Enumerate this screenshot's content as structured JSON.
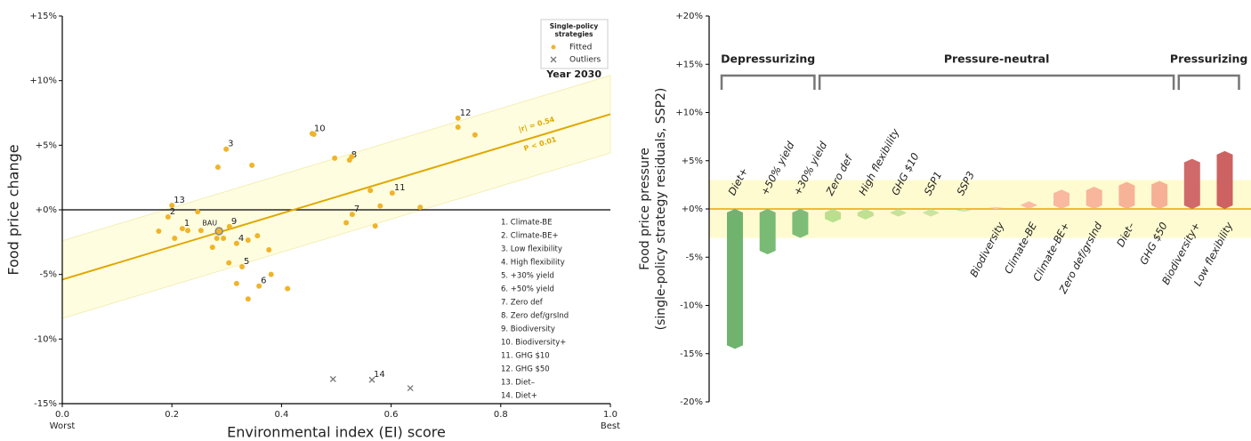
{
  "chart_data": [
    {
      "type": "scatter",
      "xlabel": "Environmental index (EI) score",
      "ylabel": "Food price change",
      "xlim": [
        0,
        1
      ],
      "ylim": [
        -15,
        15
      ],
      "xticks": [
        {
          "value": 0,
          "label": "0.0"
        },
        0.2,
        0.4,
        0.6,
        0.8,
        {
          "value": 1,
          "label": "1.0"
        }
      ],
      "xtick_sublabels": [
        "Worst",
        "Best"
      ],
      "yticks": [
        {
          "value": 15,
          "label": "+15%"
        },
        {
          "value": 10,
          "label": "+10%"
        },
        {
          "value": 5,
          "label": "+5%"
        },
        {
          "value": 0,
          "label": "+0%"
        },
        {
          "value": -5,
          "label": "-5%"
        },
        {
          "value": -10,
          "label": "-10%"
        },
        {
          "value": -15,
          "label": "-15%"
        }
      ],
      "legend_title": [
        "Single-policy",
        "strategies"
      ],
      "legend": "upper right",
      "series": [
        {
          "name": "Fitted",
          "marker": "o",
          "color": "#f0b429",
          "x": [
            0.2,
            0.193,
            0.176,
            0.219,
            0.229,
            0.205,
            0.247,
            0.253,
            0.305,
            0.282,
            0.294,
            0.274,
            0.318,
            0.339,
            0.356,
            0.377,
            0.304,
            0.328,
            0.381,
            0.359,
            0.318,
            0.339,
            0.411,
            0.299,
            0.284,
            0.346,
            0.456,
            0.459,
            0.497,
            0.524,
            0.528,
            0.722,
            0.722,
            0.753,
            0.562,
            0.602,
            0.58,
            0.653,
            0.529,
            0.518,
            0.571
          ],
          "values": [
            0.34,
            -0.55,
            -1.65,
            -1.45,
            -1.6,
            -2.2,
            -0.15,
            -1.6,
            -1.3,
            -2.2,
            -2.2,
            -2.9,
            -2.6,
            -2.35,
            -2.0,
            -3.1,
            -4.1,
            -4.4,
            -5.0,
            -5.9,
            -5.7,
            -6.9,
            -6.1,
            4.7,
            3.3,
            3.45,
            5.9,
            5.85,
            4.0,
            3.85,
            4.1,
            7.1,
            6.4,
            5.8,
            1.5,
            1.3,
            0.3,
            0.2,
            -0.35,
            -1.0,
            -1.25
          ],
          "labels": [
            "13",
            "2",
            null,
            "1",
            null,
            null,
            null,
            null,
            "9",
            null,
            null,
            null,
            "4",
            null,
            null,
            null,
            null,
            "5",
            null,
            "6",
            null,
            null,
            null,
            "3",
            null,
            null,
            "10",
            null,
            null,
            "8",
            null,
            "12",
            null,
            null,
            null,
            "11",
            null,
            null,
            "7",
            null,
            null
          ]
        },
        {
          "name": "Outliers",
          "marker": "x",
          "color": "#777777",
          "x": [
            0.494,
            0.565,
            0.635
          ],
          "values": [
            -13.1,
            -13.15,
            -13.8
          ],
          "labels": [
            null,
            "14",
            null
          ]
        }
      ],
      "highlight": {
        "label": "BAU",
        "x": 0.286,
        "y": -1.65,
        "color": "#888888"
      },
      "fit": {
        "intercept": -5.4,
        "slope": 12.8,
        "band": 3.0,
        "color": "#e0a800",
        "band_color": "#fffde0",
        "annotations": [
          "|r| = 0.54",
          "P < 0.01"
        ]
      },
      "annotation": "Year 2030",
      "key": [
        "1. Climate-BE",
        "2. Climate-BE+",
        "3. Low flexibility",
        "4. High flexibility",
        "5. +30% yield",
        "6. +50% yield",
        "7. Zero def",
        "8. Zero def/grsInd",
        "9. Biodiversity",
        "10. Biodiversity+",
        "11. GHG $10",
        "12. GHG $50",
        "13. Diet–",
        "14. Diet+"
      ]
    },
    {
      "type": "bar",
      "ylabel": [
        "Food price pressure",
        "(single-policy strategy residuals, SSP2)"
      ],
      "ylim": [
        -20,
        20
      ],
      "yticks": [
        {
          "value": 20,
          "label": "+20%"
        },
        {
          "value": 15,
          "label": "+15%"
        },
        {
          "value": 10,
          "label": "+10%"
        },
        {
          "value": 5,
          "label": "+5%"
        },
        {
          "value": 0,
          "label": "+0%"
        },
        {
          "value": -5,
          "label": "-5%"
        },
        {
          "value": -10,
          "label": "-10%"
        },
        {
          "value": -15,
          "label": "-15%"
        },
        {
          "value": -20,
          "label": "-20%"
        }
      ],
      "categories": [
        "Diet+",
        "+50% yield",
        "+30% yield",
        "Zero def",
        "High flexibility",
        "GHG $10",
        "SSP1",
        "SSP3",
        "Biodiversity",
        "Climate-BE",
        "Climate-BE+",
        "Zero def/grsInd",
        "Diet–",
        "GHG $50",
        "Biodiversity+",
        "Low flexibility"
      ],
      "values": [
        -14.5,
        -4.7,
        -3.0,
        -1.4,
        -1.1,
        -0.8,
        -0.8,
        -0.3,
        0.2,
        0.8,
        2.0,
        2.3,
        2.8,
        2.9,
        5.2,
        6.0
      ],
      "colors": [
        "#6fb36f",
        "#79ba74",
        "#7dbd78",
        "#b9e08c",
        "#bde291",
        "#c2e598",
        "#c6e79d",
        "#cdeaa6",
        "#fbc9b0",
        "#f9bda4",
        "#f8b9a0",
        "#f8b69c",
        "#f7b398",
        "#f6b096",
        "#d06a6a",
        "#cc6262"
      ],
      "groups": [
        "Depressurizing",
        "Pressure-neutral",
        "Pressurizing"
      ],
      "band": 3.0,
      "band_color": "#fffbd0",
      "zero_color": "#e8a800"
    }
  ]
}
